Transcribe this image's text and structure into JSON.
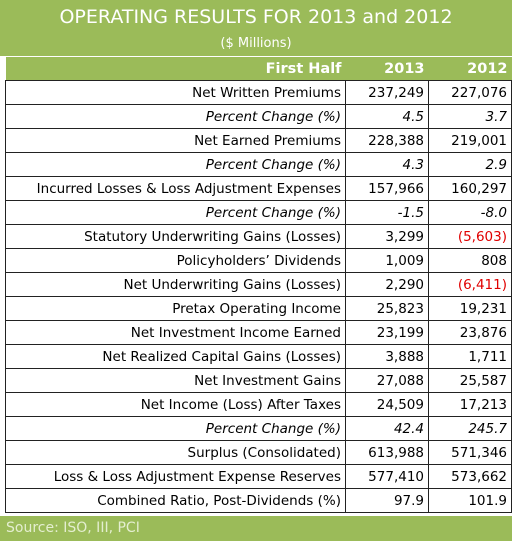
{
  "header": {
    "title": "OPERATING RESULTS FOR 2013 and 2012",
    "subtitle": "($ Millions)"
  },
  "table": {
    "columns": [
      "First Half",
      "2013",
      "2012"
    ],
    "rows": [
      {
        "cells": [
          "Net Written Premiums",
          "237,249",
          "227,076"
        ]
      },
      {
        "cells": [
          "Percent Change (%)",
          "4.5",
          "3.7"
        ],
        "italic": true
      },
      {
        "cells": [
          "Net Earned Premiums",
          "228,388",
          "219,001"
        ]
      },
      {
        "cells": [
          "Percent Change (%)",
          "4.3",
          "2.9"
        ],
        "italic": true
      },
      {
        "cells": [
          "Incurred Losses & Loss Adjustment Expenses",
          "157,966",
          "160,297"
        ]
      },
      {
        "cells": [
          "Percent Change (%)",
          "-1.5",
          "-8.0"
        ],
        "italic": true
      },
      {
        "cells": [
          "Statutory Underwriting Gains (Losses)",
          "3,299",
          "(5,603)"
        ]
      },
      {
        "cells": [
          "Policyholders’ Dividends",
          "1,009",
          "808"
        ]
      },
      {
        "cells": [
          "Net Underwriting Gains (Losses)",
          "2,290",
          "(6,411)"
        ]
      },
      {
        "cells": [
          "Pretax Operating Income",
          "25,823",
          "19,231"
        ]
      },
      {
        "cells": [
          "Net Investment Income Earned",
          "23,199",
          "23,876"
        ]
      },
      {
        "cells": [
          "Net Realized Capital Gains (Losses)",
          "3,888",
          "1,711"
        ]
      },
      {
        "cells": [
          "Net Investment Gains",
          "27,088",
          "25,587"
        ]
      },
      {
        "cells": [
          "Net Income (Loss) After Taxes",
          "24,509",
          "17,213"
        ]
      },
      {
        "cells": [
          "Percent Change (%)",
          "42.4",
          "245.7"
        ],
        "italic": true
      },
      {
        "cells": [
          "Surplus (Consolidated)",
          "613,988",
          "571,346"
        ]
      },
      {
        "cells": [
          "Loss & Loss Adjustment Expense Reserves",
          "577,410",
          "573,662"
        ]
      },
      {
        "cells": [
          "Combined Ratio, Post-Dividends (%)",
          "97.9",
          "101.9"
        ]
      }
    ]
  },
  "footer": {
    "source": "Source: ISO, III, PCI"
  }
}
